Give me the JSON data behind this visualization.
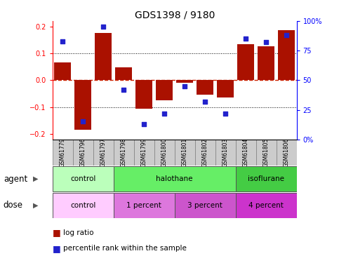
{
  "title": "GDS1398 / 9180",
  "samples": [
    "GSM61779",
    "GSM61796",
    "GSM61797",
    "GSM61798",
    "GSM61799",
    "GSM61800",
    "GSM61801",
    "GSM61802",
    "GSM61803",
    "GSM61804",
    "GSM61805",
    "GSM61806"
  ],
  "log_ratio": [
    0.065,
    -0.185,
    0.175,
    0.048,
    -0.105,
    -0.075,
    -0.01,
    -0.055,
    -0.065,
    0.135,
    0.125,
    0.185
  ],
  "percentile_rank": [
    0.83,
    0.15,
    0.95,
    0.42,
    0.13,
    0.22,
    0.45,
    0.32,
    0.22,
    0.85,
    0.82,
    0.88
  ],
  "bar_color": "#aa1100",
  "dot_color": "#2222cc",
  "ylim": [
    -0.22,
    0.22
  ],
  "yticks_left": [
    -0.2,
    -0.1,
    0.0,
    0.1,
    0.2
  ],
  "yticks_right_vals": [
    0.0,
    0.25,
    0.5,
    0.75,
    1.0
  ],
  "ytick_right_labels": [
    "0%",
    "25",
    "50",
    "75",
    "100%"
  ],
  "hlines_dotted": [
    -0.1,
    0.1
  ],
  "zero_line_color": "#cc2200",
  "sample_box_color": "#cccccc",
  "agent_groups": [
    {
      "label": "control",
      "color": "#bbffbb",
      "start": 0,
      "end": 3
    },
    {
      "label": "halothane",
      "color": "#66ee66",
      "start": 3,
      "end": 9
    },
    {
      "label": "isoflurane",
      "color": "#44cc44",
      "start": 9,
      "end": 12
    }
  ],
  "dose_groups": [
    {
      "label": "control",
      "color": "#ffccff",
      "start": 0,
      "end": 3
    },
    {
      "label": "1 percent",
      "color": "#dd77dd",
      "start": 3,
      "end": 6
    },
    {
      "label": "3 percent",
      "color": "#cc55cc",
      "start": 6,
      "end": 9
    },
    {
      "label": "4 percent",
      "color": "#cc33cc",
      "start": 9,
      "end": 12
    }
  ],
  "legend_bar_label": "log ratio",
  "legend_dot_label": "percentile rank within the sample",
  "background_color": "#ffffff"
}
